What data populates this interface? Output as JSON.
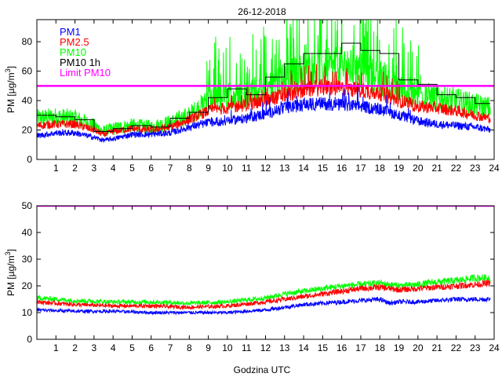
{
  "chart_data": [
    {
      "type": "line",
      "title": "26-12-2018",
      "xlabel": "",
      "ylabel_base": "PM [µg/m",
      "ylabel_sup": "3",
      "ylabel_close": "]",
      "xlim": [
        0,
        24
      ],
      "ylim": [
        0,
        95
      ],
      "x_ticks": [
        1,
        2,
        3,
        4,
        5,
        6,
        7,
        8,
        9,
        10,
        11,
        12,
        13,
        14,
        15,
        16,
        17,
        18,
        19,
        20,
        21,
        22,
        23,
        24
      ],
      "x_tick_labels": [
        "1",
        "2",
        "3",
        "4",
        "5",
        "6",
        "7",
        "8",
        "9",
        "10",
        "11",
        "12",
        "13",
        "14",
        "15",
        "16",
        "17",
        "18",
        "19",
        "20",
        "21",
        "22",
        "23",
        "24"
      ],
      "y_ticks": [
        0,
        20,
        40,
        60,
        80
      ],
      "y_tick_labels": [
        "0",
        "20",
        "40",
        "60",
        "80"
      ],
      "legend": [
        {
          "label": "PM1",
          "color": "#0000ff"
        },
        {
          "label": "PM2.5",
          "color": "#ff0000"
        },
        {
          "label": "PM10",
          "color": "#00ff00"
        },
        {
          "label": "PM10 1h",
          "color": "#000000"
        },
        {
          "label": "Limit PM10",
          "color": "#ff00ff"
        }
      ],
      "limit": 50,
      "series": [
        {
          "name": "PM1",
          "color": "#0000ff",
          "x": [
            0,
            1,
            2,
            3,
            3.5,
            4,
            5,
            6,
            7,
            8,
            9,
            10,
            11,
            12,
            13,
            14,
            15,
            16,
            17,
            18,
            19,
            20,
            21,
            22,
            23,
            23.8
          ],
          "values": [
            16,
            18,
            18,
            15,
            13,
            14,
            17,
            17,
            18,
            22,
            25,
            26,
            28,
            31,
            35,
            37,
            38,
            37,
            36,
            34,
            30,
            26,
            24,
            23,
            22,
            20
          ]
        },
        {
          "name": "PM2.5",
          "color": "#ff0000",
          "x": [
            0,
            1,
            2,
            3,
            3.5,
            4,
            5,
            6,
            7,
            8,
            9,
            10,
            11,
            12,
            13,
            14,
            15,
            16,
            17,
            18,
            19,
            20,
            21,
            22,
            23,
            23.8
          ],
          "values": [
            23,
            24,
            24,
            20,
            17,
            19,
            21,
            20,
            22,
            27,
            33,
            35,
            37,
            40,
            44,
            47,
            49,
            48,
            47,
            45,
            40,
            36,
            35,
            33,
            30,
            28
          ]
        },
        {
          "name": "PM10",
          "color": "#00ff00",
          "x": [
            0,
            1,
            2,
            3,
            3.5,
            4,
            5,
            6,
            7,
            8,
            9,
            10,
            11,
            12,
            13,
            14,
            15,
            16,
            17,
            18,
            19,
            20,
            21,
            22,
            23,
            23.8
          ],
          "values": [
            28,
            29,
            28,
            23,
            19,
            21,
            23,
            22,
            25,
            30,
            40,
            42,
            44,
            48,
            55,
            60,
            62,
            63,
            60,
            55,
            48,
            44,
            42,
            40,
            37,
            35
          ]
        },
        {
          "name": "PM10 1h",
          "color": "#000000",
          "step": true,
          "x": [
            0,
            1,
            2,
            3,
            4,
            5,
            6,
            7,
            8,
            9,
            10,
            11,
            12,
            13,
            14,
            15,
            16,
            17,
            18,
            19,
            20,
            21,
            22,
            23
          ],
          "values": [
            30,
            29,
            27,
            19,
            21,
            23,
            22,
            28,
            32,
            42,
            48,
            44,
            56,
            65,
            72,
            72,
            79,
            74,
            72,
            54,
            51,
            44,
            42,
            38
          ]
        }
      ]
    },
    {
      "type": "line",
      "title": "",
      "xlabel": "Godzina UTC",
      "ylabel_base": "PM [µg/m",
      "ylabel_sup": "3",
      "ylabel_close": "]",
      "xlim": [
        0,
        24
      ],
      "ylim": [
        0,
        50
      ],
      "x_ticks": [
        1,
        2,
        3,
        4,
        5,
        6,
        7,
        8,
        9,
        10,
        11,
        12,
        13,
        14,
        15,
        16,
        17,
        18,
        19,
        20,
        21,
        22,
        23,
        24
      ],
      "x_tick_labels": [
        "1",
        "2",
        "3",
        "4",
        "5",
        "6",
        "7",
        "8",
        "9",
        "10",
        "11",
        "12",
        "13",
        "14",
        "15",
        "16",
        "17",
        "18",
        "19",
        "20",
        "21",
        "22",
        "23",
        "24"
      ],
      "y_ticks": [
        0,
        10,
        20,
        30,
        40,
        50
      ],
      "y_tick_labels": [
        "0",
        "10",
        "20",
        "30",
        "40",
        "50"
      ],
      "limit": 50,
      "series": [
        {
          "name": "PM1",
          "color": "#0000ff",
          "x": [
            0,
            2,
            4,
            6,
            8,
            10,
            12,
            13,
            14,
            15,
            16,
            17,
            18,
            18.5,
            19,
            20,
            21,
            22,
            23,
            23.8
          ],
          "values": [
            11,
            10.5,
            10.5,
            10,
            10,
            10,
            11,
            12,
            13,
            13.5,
            14,
            14.5,
            15,
            13.5,
            14,
            14,
            14.5,
            15,
            15,
            15
          ]
        },
        {
          "name": "PM2.5",
          "color": "#ff0000",
          "x": [
            0,
            2,
            4,
            6,
            8,
            10,
            12,
            13,
            14,
            15,
            16,
            17,
            18,
            19,
            20,
            21,
            22,
            23,
            23.8
          ],
          "values": [
            14,
            13,
            12.5,
            12.5,
            12,
            12.5,
            14,
            15,
            16,
            17,
            18,
            19,
            19.5,
            18.5,
            19,
            19.5,
            20,
            20.5,
            21
          ]
        },
        {
          "name": "PM10",
          "color": "#00ff00",
          "x": [
            0,
            2,
            4,
            6,
            8,
            10,
            12,
            13,
            14,
            15,
            16,
            17,
            18,
            19,
            20,
            21,
            22,
            23,
            23.8
          ],
          "values": [
            15.5,
            14.5,
            14,
            14,
            13.5,
            14,
            15.5,
            17,
            18,
            19,
            20,
            20.5,
            21,
            20,
            20.5,
            21.5,
            22,
            23,
            23
          ]
        }
      ]
    }
  ]
}
